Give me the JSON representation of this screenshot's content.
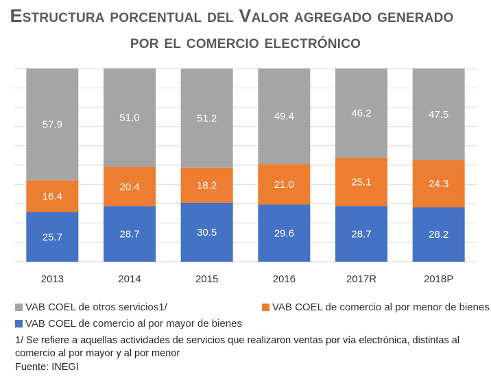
{
  "title": {
    "line1": "Estructura porcentual del Valor agregado generado",
    "line2": "por el comercio electrónico"
  },
  "chart_data": {
    "type": "bar",
    "stacked": true,
    "categories": [
      "2013",
      "2014",
      "2015",
      "2016",
      "2017R",
      "2018P"
    ],
    "series": [
      {
        "name": "VAB COEL de comercio al por mayor de bienes",
        "color": "#4472C4",
        "values": [
          25.7,
          28.7,
          30.5,
          29.6,
          28.7,
          28.2
        ]
      },
      {
        "name": "VAB COEL de comercio al por menor de bienes",
        "color": "#ED7D31",
        "values": [
          16.4,
          20.4,
          18.2,
          21.0,
          25.1,
          24.3
        ]
      },
      {
        "name": "VAB COEL de otros servicios1/",
        "color": "#A5A5A5",
        "values": [
          57.9,
          51.0,
          51.2,
          49.4,
          46.2,
          47.5
        ]
      }
    ],
    "labels": [
      [
        "25.7",
        "28.7",
        "30.5",
        "29.6",
        "28.7",
        "28.2"
      ],
      [
        "16.4",
        "20.4",
        "18.2",
        "21.0",
        "25.1",
        "24.3"
      ],
      [
        "57.9",
        "51.0",
        "51.2",
        "49.4",
        "46.2",
        "47.5"
      ]
    ],
    "ylim": [
      0,
      100
    ],
    "grid": true,
    "legend_position": "bottom"
  },
  "legend": {
    "otros": "VAB COEL de otros servicios1/",
    "menor": "VAB COEL de comercio al por menor de bienes",
    "mayor": "VAB COEL de comercio al por mayor de bienes"
  },
  "footnote": {
    "line1": "1/ Se refiere a aquellas actividades de servicios que realizaron ventas por vía electrónica, distintas al",
    "line2": "comercio al por mayor y al por menor",
    "source": "Fuente: INEGI"
  }
}
